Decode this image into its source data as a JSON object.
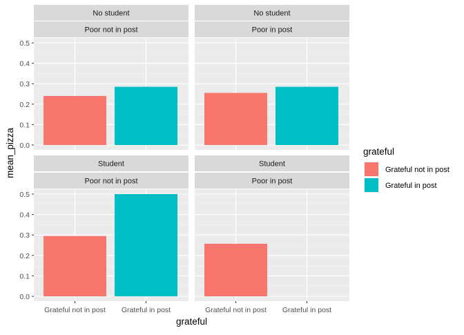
{
  "chart_data": {
    "type": "bar",
    "xlabel": "grateful",
    "ylabel": "mean_pizza",
    "categories": [
      "Grateful not in post",
      "Grateful in post"
    ],
    "ylim": [
      0,
      0.5
    ],
    "y_ticks": [
      "0.0",
      "0.1",
      "0.2",
      "0.3",
      "0.4",
      "0.5"
    ],
    "grid": true,
    "legend": {
      "title": "grateful",
      "position": "right",
      "entries": [
        {
          "label": "Grateful not in post",
          "color": "#F8766D"
        },
        {
          "label": "Grateful in post",
          "color": "#00BFC4"
        }
      ]
    },
    "facet_rows": [
      "No student",
      "Student"
    ],
    "facet_cols": [
      "Poor not in post",
      "Poor in post"
    ],
    "panels": [
      {
        "row": "No student",
        "col": "Poor not in post",
        "values": [
          0.24,
          0.285
        ]
      },
      {
        "row": "No student",
        "col": "Poor in post",
        "values": [
          0.255,
          0.285
        ]
      },
      {
        "row": "Student",
        "col": "Poor not in post",
        "values": [
          0.295,
          0.5
        ]
      },
      {
        "row": "Student",
        "col": "Poor in post",
        "values": [
          0.257,
          null
        ]
      }
    ]
  }
}
